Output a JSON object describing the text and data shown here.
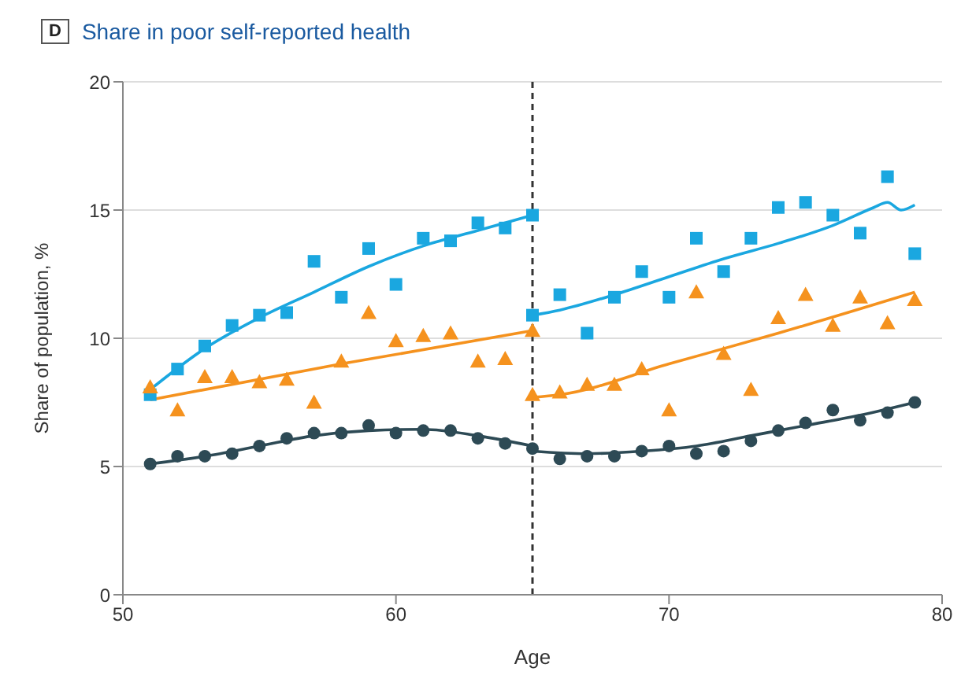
{
  "chart_data": {
    "type": "scatter",
    "title": "Share in poor self-reported health",
    "annotations": [
      "D"
    ],
    "xlabel": "Age",
    "ylabel": "Share of population, %",
    "xlim": [
      50,
      80
    ],
    "xticks": [
      50,
      60,
      70,
      80
    ],
    "ylim": [
      0,
      20
    ],
    "yticks": [
      0,
      5,
      10,
      15,
      20
    ],
    "grid": "y",
    "legend": false,
    "ref_lines": [
      {
        "axis": "x",
        "value": 65,
        "color": "#333333",
        "line_style": "dashed"
      }
    ],
    "series": [
      {
        "marker": "square",
        "color": "#1aa7e0",
        "x": [
          51,
          52,
          53,
          54,
          55,
          56,
          57,
          58,
          59,
          60,
          61,
          62,
          63,
          64,
          65,
          65,
          66,
          67,
          68,
          69,
          70,
          71,
          72,
          73,
          74,
          75,
          76,
          77,
          78,
          79
        ],
        "values": [
          7.8,
          8.8,
          9.7,
          10.5,
          10.9,
          11.0,
          13.0,
          11.6,
          13.5,
          12.1,
          13.9,
          13.8,
          14.5,
          14.3,
          14.8,
          10.9,
          11.7,
          10.2,
          11.6,
          12.6,
          11.6,
          13.9,
          12.6,
          13.9,
          15.1,
          15.3,
          14.8,
          14.1,
          16.3,
          13.3
        ]
      },
      {
        "marker": "triangle",
        "color": "#f5921e",
        "x": [
          51,
          52,
          53,
          54,
          55,
          56,
          57,
          58,
          59,
          60,
          61,
          62,
          63,
          64,
          65,
          65,
          66,
          67,
          68,
          69,
          70,
          71,
          72,
          73,
          74,
          75,
          76,
          77,
          78,
          79
        ],
        "values": [
          8.1,
          7.2,
          8.5,
          8.5,
          8.3,
          8.4,
          7.5,
          9.1,
          11.0,
          9.9,
          10.1,
          10.2,
          9.1,
          9.2,
          10.3,
          7.8,
          7.9,
          8.2,
          8.2,
          8.8,
          7.2,
          11.8,
          9.4,
          8.0,
          10.8,
          11.7,
          10.5,
          11.6,
          10.6,
          11.5
        ]
      },
      {
        "marker": "circle",
        "color": "#2d4a55",
        "x": [
          51,
          52,
          53,
          54,
          55,
          56,
          57,
          58,
          59,
          60,
          61,
          62,
          63,
          64,
          65,
          66,
          67,
          68,
          69,
          70,
          71,
          72,
          73,
          74,
          75,
          76,
          77,
          78,
          79
        ],
        "values": [
          5.1,
          5.4,
          5.4,
          5.5,
          5.8,
          6.1,
          6.3,
          6.3,
          6.6,
          6.3,
          6.4,
          6.4,
          6.1,
          5.9,
          5.7,
          5.3,
          5.4,
          5.4,
          5.6,
          5.8,
          5.5,
          5.6,
          6.0,
          6.4,
          6.7,
          7.2,
          6.8,
          7.1,
          7.5
        ]
      },
      {
        "type": "line",
        "color": "#1aa7e0",
        "x": [
          51,
          53,
          55,
          57,
          59,
          61,
          63,
          65
        ],
        "values": [
          8.0,
          9.6,
          10.8,
          11.8,
          12.8,
          13.6,
          14.2,
          14.8
        ]
      },
      {
        "type": "line",
        "color": "#1aa7e0",
        "x": [
          65,
          66,
          68,
          70,
          72,
          74,
          76,
          77.5,
          78,
          78.5,
          79
        ],
        "values": [
          10.9,
          11.1,
          11.7,
          12.4,
          13.1,
          13.7,
          14.4,
          15.1,
          15.3,
          15.0,
          15.2
        ]
      },
      {
        "type": "line",
        "color": "#f5921e",
        "x": [
          51,
          58,
          65
        ],
        "values": [
          7.6,
          9.0,
          10.3
        ]
      },
      {
        "type": "line",
        "color": "#f5921e",
        "x": [
          65,
          66,
          70,
          74,
          79
        ],
        "values": [
          7.7,
          7.8,
          9.0,
          10.2,
          11.8
        ]
      },
      {
        "type": "line",
        "color": "#2d4a55",
        "x": [
          51,
          53,
          55,
          57,
          59,
          61,
          63,
          65
        ],
        "values": [
          5.1,
          5.4,
          5.8,
          6.2,
          6.4,
          6.45,
          6.2,
          5.8
        ]
      },
      {
        "type": "line",
        "color": "#2d4a55",
        "x": [
          65,
          67,
          69,
          71,
          73,
          75,
          77,
          79
        ],
        "values": [
          5.6,
          5.5,
          5.6,
          5.8,
          6.2,
          6.6,
          7.0,
          7.5
        ]
      }
    ]
  }
}
